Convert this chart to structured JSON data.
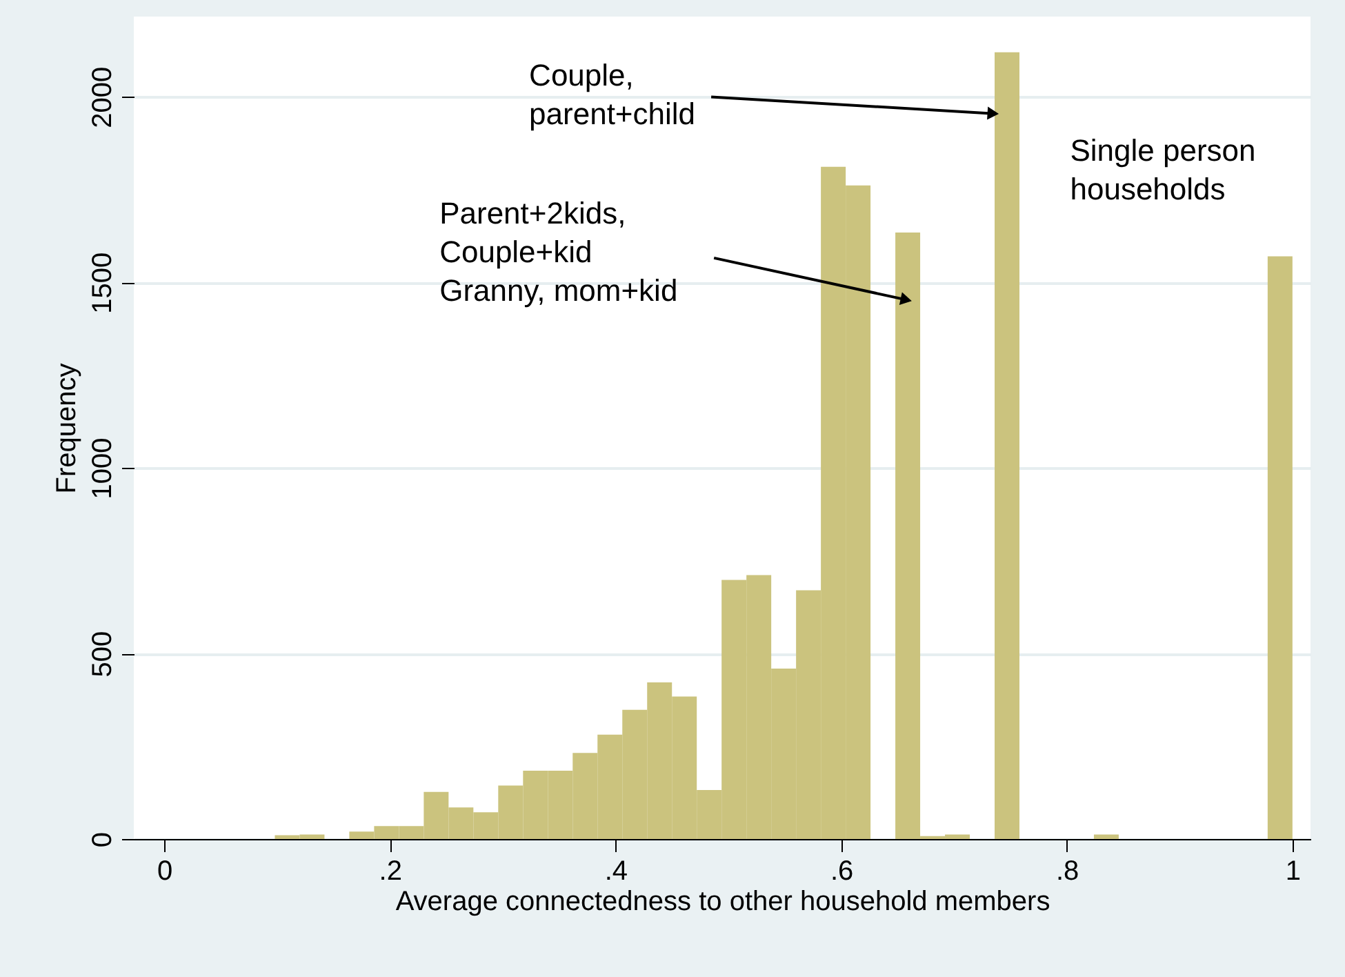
{
  "chart_data": {
    "type": "histogram",
    "xlabel": "Average connectedness to other household members",
    "ylabel": "Frequency",
    "bins": [
      0.098,
      0.12,
      0.142,
      0.164,
      0.186,
      0.208,
      0.23,
      0.252,
      0.274,
      0.296,
      0.318,
      0.34,
      0.362,
      0.384,
      0.406,
      0.428,
      0.45,
      0.472,
      0.494,
      0.516,
      0.538,
      0.56,
      0.582,
      0.604,
      0.626,
      0.648,
      0.67,
      0.692,
      0.714,
      0.736,
      0.758,
      0.78,
      0.802,
      0.824,
      0.846,
      0.868,
      0.89,
      0.912,
      0.934,
      0.956,
      0.978,
      1.0
    ],
    "values": [
      10,
      12,
      0,
      20,
      35,
      35,
      127,
      85,
      72,
      144,
      184,
      184,
      232,
      281,
      348,
      422,
      384,
      132,
      698,
      711,
      459,
      670,
      1811,
      1761,
      0,
      1634,
      8,
      12,
      0,
      2120,
      0,
      0,
      0,
      12,
      0,
      0,
      0,
      0,
      0,
      0,
      1570
    ],
    "color": "#cbc37e",
    "xlim": [
      -0.027,
      1.016
    ],
    "ylim": [
      0,
      2216
    ],
    "xticks": [
      0,
      {
        "value": 0.2,
        "label": ".2"
      },
      {
        "value": 0.4,
        "label": ".4"
      },
      {
        "value": 0.6,
        "label": ".6"
      },
      {
        "value": 0.8,
        "label": ".8"
      },
      1
    ],
    "yticks": [
      0,
      500,
      1000,
      1500,
      2000
    ],
    "grid": "y",
    "annotations": [
      {
        "text": "Couple,\nparent+child",
        "x": 0.733,
        "y": 1955
      },
      {
        "text": "Parent+2kids,\nCouple+kid\nGranny, mom+kid",
        "x": 0.656,
        "y": 1454
      },
      {
        "text": "Single person\nhouseholds",
        "x": 0.99,
        "y": 1570
      }
    ]
  }
}
